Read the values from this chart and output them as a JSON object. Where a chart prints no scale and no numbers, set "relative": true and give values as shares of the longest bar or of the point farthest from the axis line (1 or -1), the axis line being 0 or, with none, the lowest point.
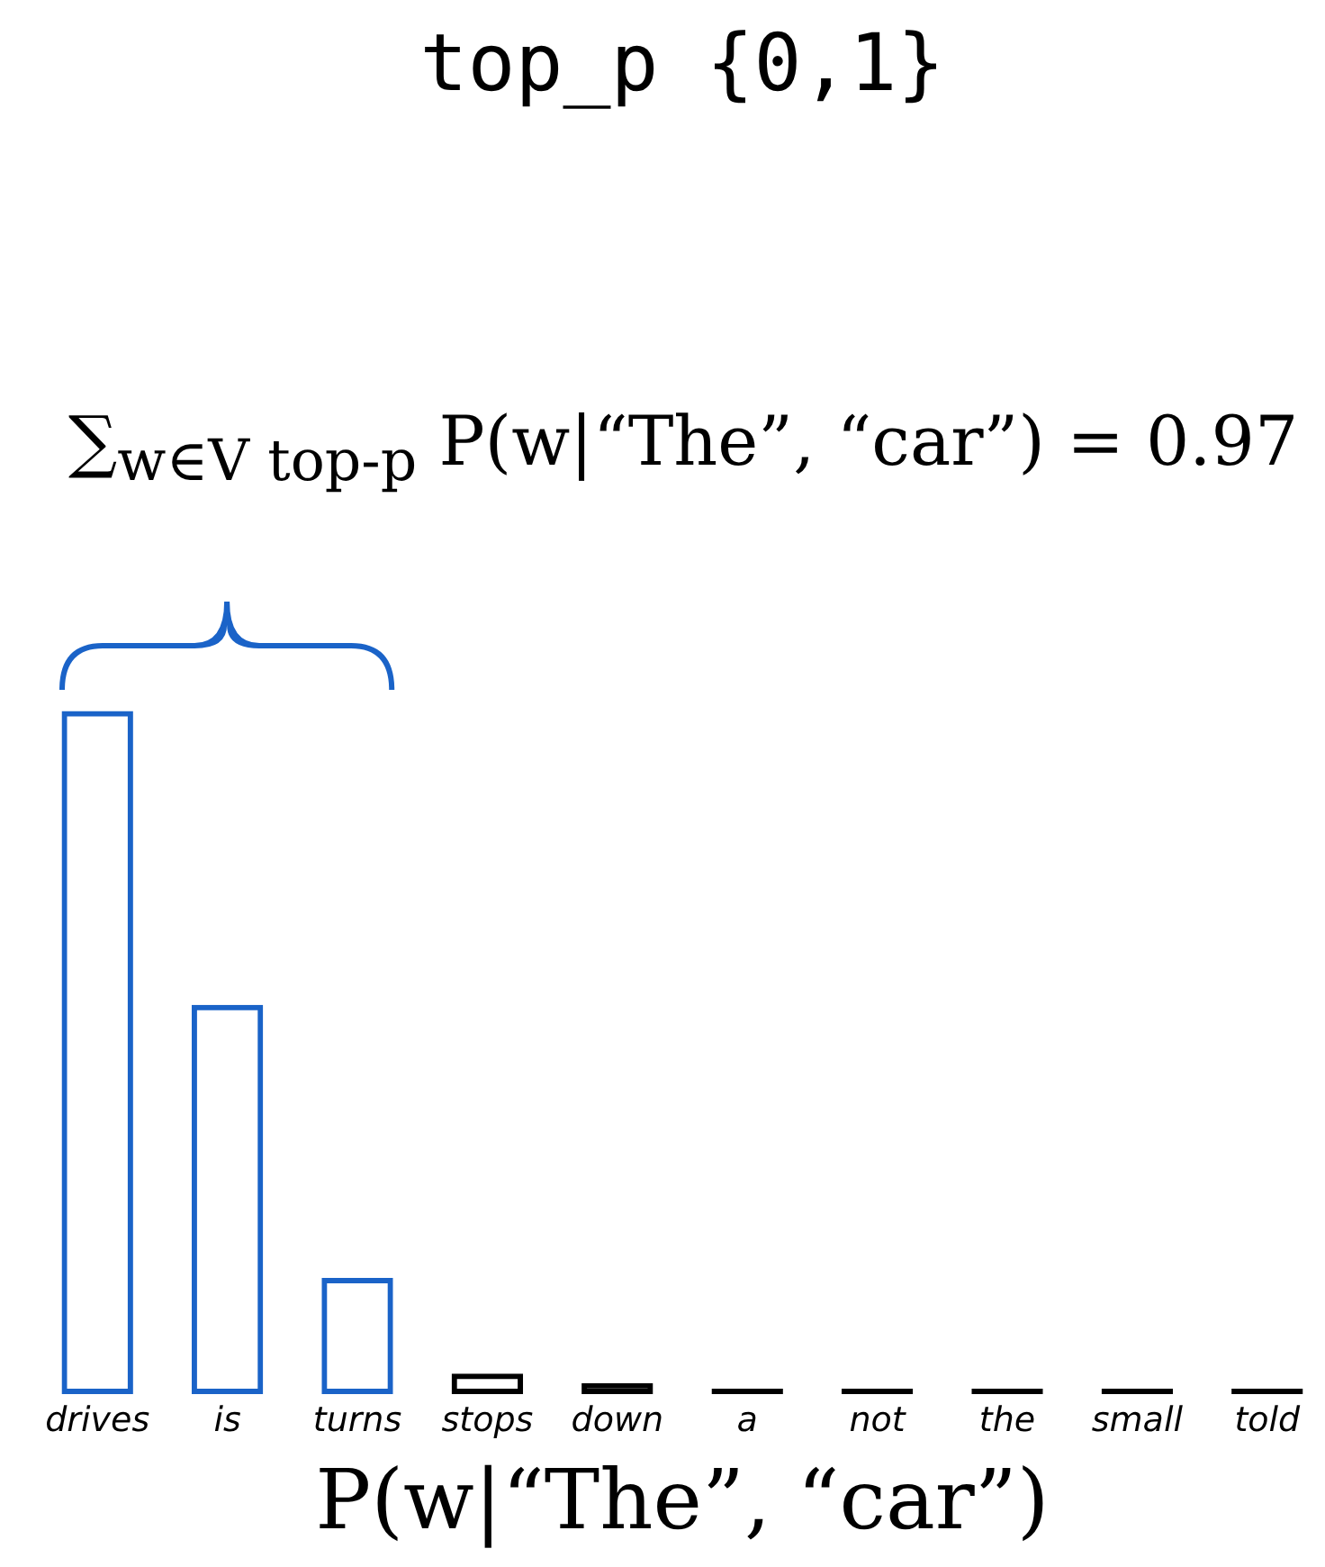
{
  "chart_data": {
    "type": "bar",
    "title": "top_p {0,1}",
    "xlabel": "P(w|“The”, “car”)",
    "relative": true,
    "annotations": [
      "∑$_{w∈V top-p}$ P(w|“The”, “car”) = 0.97"
    ],
    "categories": [
      "drives",
      "is",
      "turns",
      "stops",
      "down",
      "a",
      "not",
      "the",
      "small",
      "told"
    ],
    "values": [
      1,
      0.57,
      0.17,
      0.03,
      0.016,
      0,
      0,
      0,
      0,
      0
    ],
    "colors": [
      "#1a63c8",
      "#1a63c8",
      "#1a63c8",
      "#000000",
      "#000000",
      "#000000",
      "#000000",
      "#000000",
      "#000000",
      "#000000"
    ],
    "grid": false,
    "legend": false
  }
}
